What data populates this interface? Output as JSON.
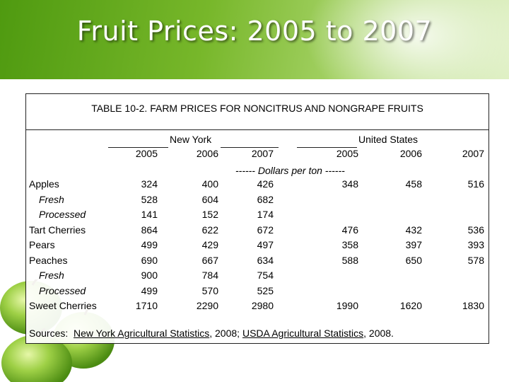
{
  "slide": {
    "title": "Fruit Prices: 2005 to 2007"
  },
  "table": {
    "caption": "TABLE 10-2.  FARM PRICES FOR NONCITRUS AND NONGRAPE FRUITS",
    "group_ny": "New York",
    "group_us": "United States",
    "years": [
      "2005",
      "2006",
      "2007",
      "2005",
      "2006",
      "2007"
    ],
    "unit": "------ Dollars per ton ------",
    "rows": [
      {
        "label": "Apples",
        "values": [
          "324",
          "400",
          "426",
          "348",
          "458",
          "516"
        ]
      },
      {
        "label": "Fresh",
        "values": [
          "528",
          "604",
          "682",
          "",
          "",
          ""
        ]
      },
      {
        "label": "Processed",
        "values": [
          "141",
          "152",
          "174",
          "",
          "",
          ""
        ]
      },
      {
        "label": "Tart Cherries",
        "values": [
          "864",
          "622",
          "672",
          "476",
          "432",
          "536"
        ]
      },
      {
        "label": "Pears",
        "values": [
          "499",
          "429",
          "497",
          "358",
          "397",
          "393"
        ]
      },
      {
        "label": "Peaches",
        "values": [
          "690",
          "667",
          "634",
          "588",
          "650",
          "578"
        ]
      },
      {
        "label": "Fresh",
        "values": [
          "900",
          "784",
          "754",
          "",
          "",
          ""
        ]
      },
      {
        "label": "Processed",
        "values": [
          "499",
          "570",
          "525",
          "",
          "",
          ""
        ]
      },
      {
        "label": "Sweet Cherries",
        "values": [
          "1710",
          "2290",
          "2980",
          "1990",
          "1620",
          "1830"
        ]
      }
    ],
    "source": {
      "prefix": "Sources:",
      "ny": "New York Agricultural Statistics",
      "sep": ", 2008;",
      "us": "USDA Agricultural Statistics",
      "suffix": ", 2008."
    }
  },
  "colors": {
    "header_green": "#77b72a",
    "apple_green": "#8cc63f"
  }
}
